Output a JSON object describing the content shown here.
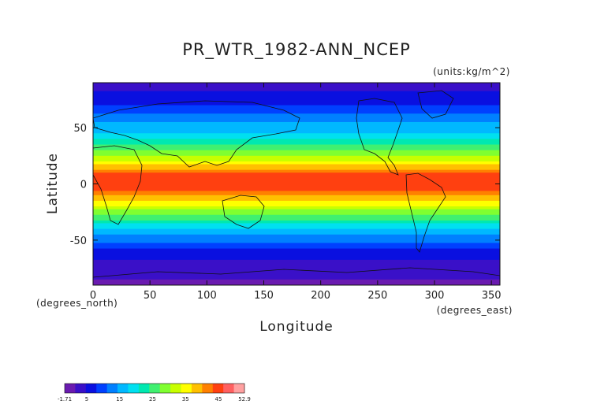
{
  "chart_data": {
    "type": "heatmap",
    "title": "PR_WTR_1982-ANN_NCEP",
    "units_label": "(units:kg/m^2)",
    "xlabel": "Longitude",
    "ylabel": "Latitude",
    "x_units_label": "(degrees_east)",
    "y_units_label": "(degrees_north)",
    "xlim": [
      0,
      357.5
    ],
    "ylim": [
      -90,
      90
    ],
    "x_ticks": [
      0,
      50,
      100,
      150,
      200,
      250,
      300,
      350
    ],
    "y_ticks": [
      50,
      0,
      -50
    ],
    "colorbar": {
      "min": -1.71,
      "max": 52.9,
      "tick_values": [
        -1.71,
        5,
        15,
        25,
        35,
        45,
        52.9
      ],
      "tick_labels": [
        "-1.71",
        "5",
        "15",
        "25",
        "35",
        "45",
        "52.9"
      ],
      "colors": [
        "#6a1bb0",
        "#3a10c8",
        "#0a10e0",
        "#0040ff",
        "#0080ff",
        "#00b8ff",
        "#00e0f0",
        "#00e8b0",
        "#40f070",
        "#80ff30",
        "#c8ff00",
        "#ffff00",
        "#ffc000",
        "#ff8000",
        "#ff4010",
        "#ff6060",
        "#ffa0a0"
      ]
    },
    "zonal_mean_profile": {
      "latitude": [
        90,
        80,
        70,
        60,
        50,
        40,
        30,
        20,
        10,
        5,
        0,
        -5,
        -10,
        -20,
        -30,
        -40,
        -50,
        -60,
        -70,
        -80,
        -90
      ],
      "precipitable_water": [
        3,
        5,
        8,
        12,
        16,
        20,
        27,
        34,
        43,
        46,
        45,
        44,
        40,
        33,
        25,
        18,
        12,
        7,
        4,
        2,
        1
      ]
    },
    "grid": false,
    "legend": "colorbar-bottom-left"
  }
}
